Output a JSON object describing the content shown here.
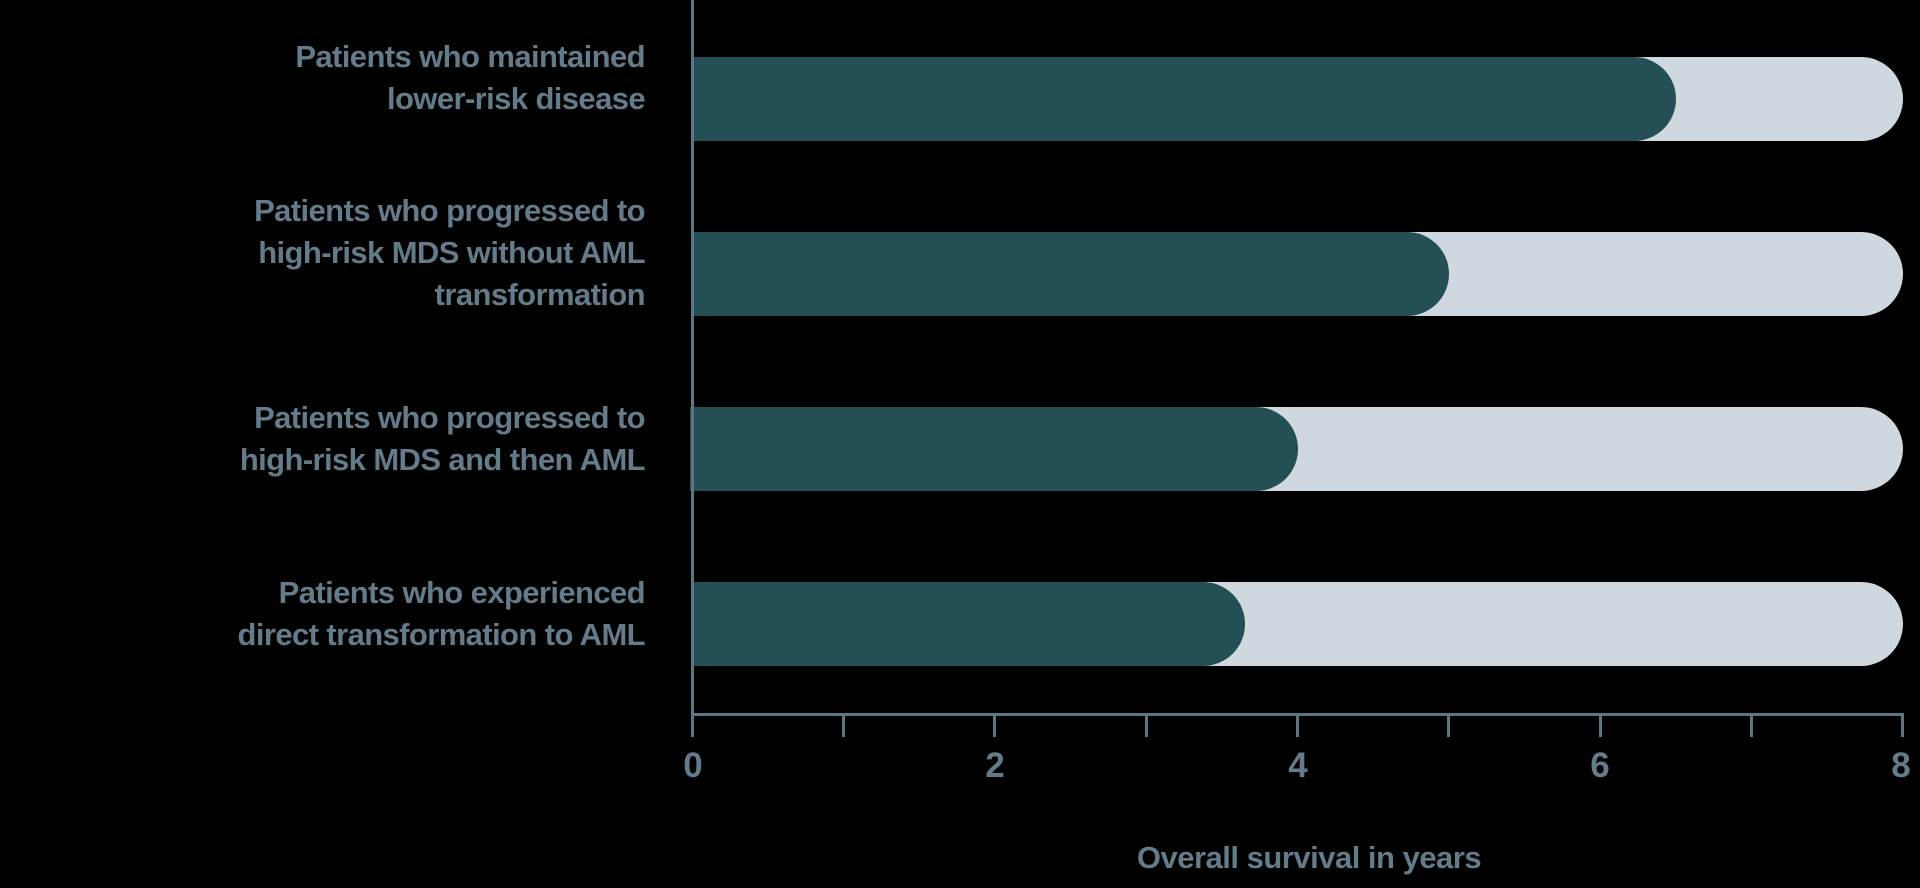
{
  "chart_data": {
    "type": "bar",
    "orientation": "horizontal",
    "title": "",
    "xlabel": "Overall survival in years",
    "ylabel": "",
    "xlim": [
      0,
      8
    ],
    "x_ticks": [
      0,
      1,
      2,
      3,
      4,
      5,
      6,
      7,
      8
    ],
    "x_tick_labels": [
      "0",
      "2",
      "4",
      "6",
      "8"
    ],
    "grid": false,
    "legend": null,
    "categories": [
      "Patients who maintained lower-risk disease",
      "Patients who progressed to high-risk MDS without AML transformation",
      "Patients who progressed to high-risk MDS and then AML",
      "Patients who experienced direct transformation to AML"
    ],
    "values": [
      6.5,
      5.0,
      4.0,
      3.65
    ],
    "track_max": 8,
    "colors": {
      "bar": "#234f55",
      "track": "#cfd8de",
      "axis": "#5e7584",
      "text": "#647b8a",
      "background": "#000000"
    }
  },
  "labels": [
    "Patients who maintained\nlower-risk disease",
    "Patients who progressed to\nhigh-risk MDS without AML\ntransformation",
    "Patients who progressed to\nhigh-risk MDS and then AML",
    "Patients who experienced\ndirect transformation to AML"
  ],
  "ticks": {
    "t0": "0",
    "t2": "2",
    "t4": "4",
    "t6": "6",
    "t8": "8"
  },
  "xlabel": "Overall survival in years"
}
